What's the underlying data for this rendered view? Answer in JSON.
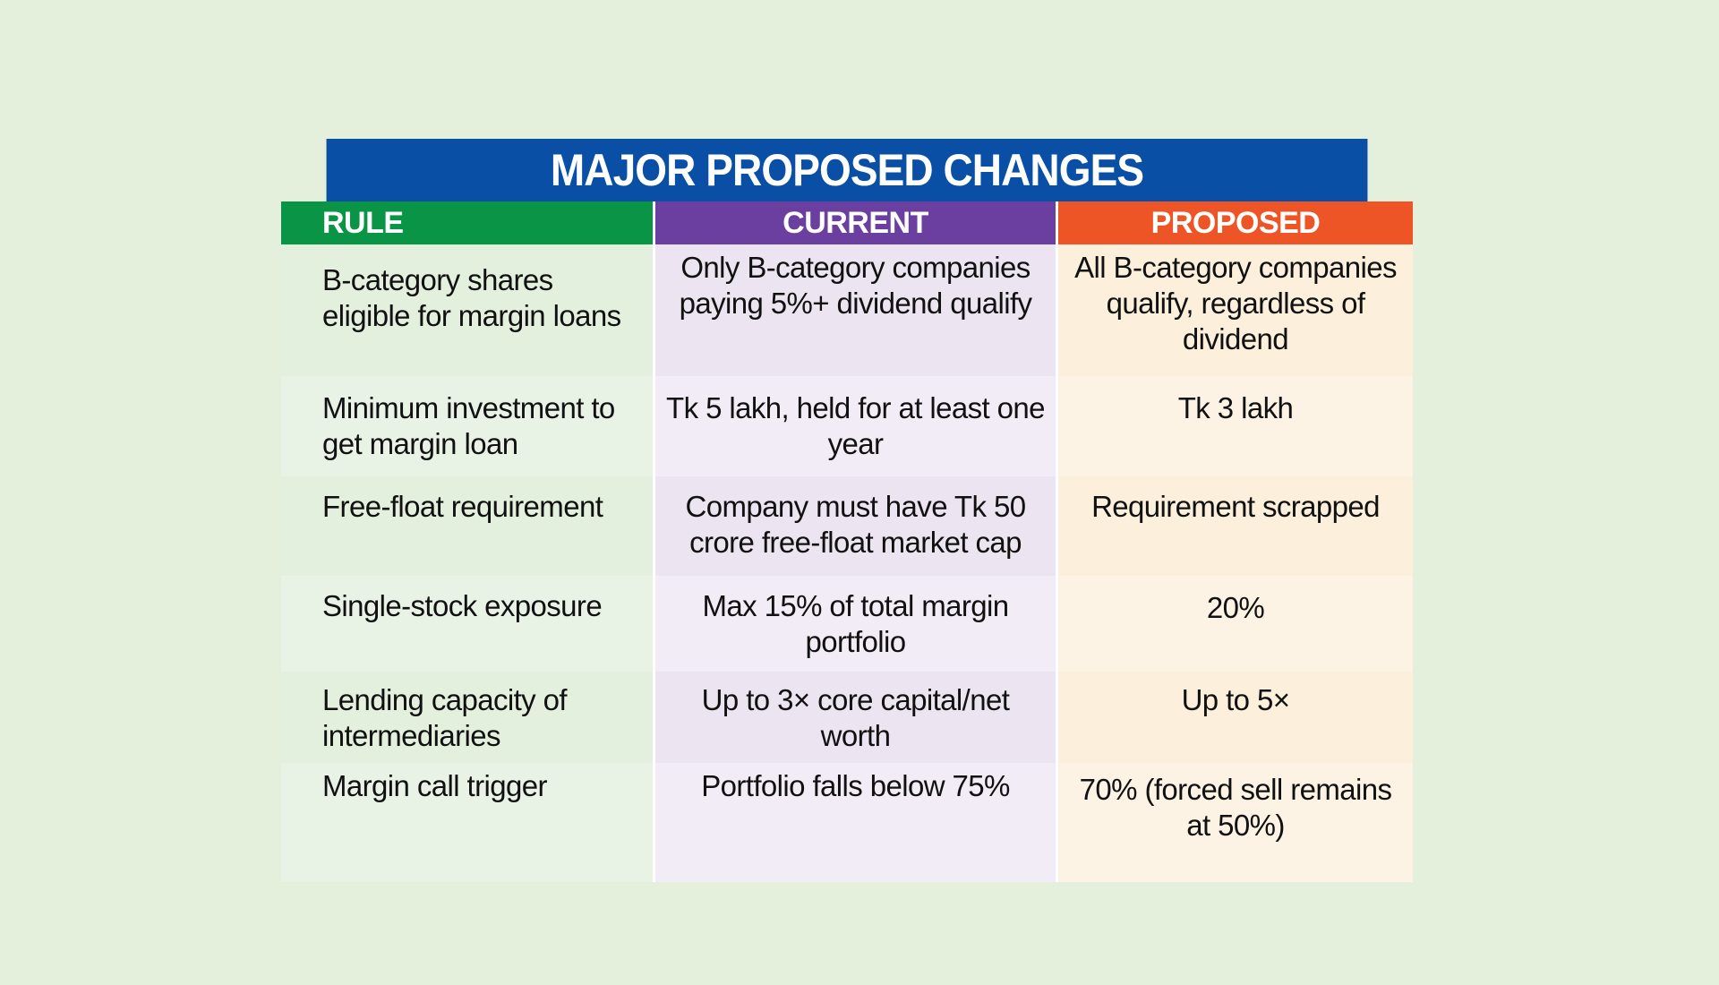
{
  "title": "MAJOR PROPOSED CHANGES",
  "headers": {
    "rule": "RULE",
    "current": "CURRENT",
    "proposed": "PROPOSED"
  },
  "colors": {
    "title_bg": "#0a4fa6",
    "rule_header": "#0a9446",
    "current_header": "#6a3fa0",
    "proposed_header": "#ee5526",
    "page_bg": "#e4f0dc"
  },
  "rows": [
    {
      "rule": "B-category shares eligible for margin loans",
      "current": "Only B-category companies paying 5%+ dividend qualify",
      "proposed": "All B-category companies qualify, regardless of dividend"
    },
    {
      "rule": "Minimum investment to get margin loan",
      "current": "Tk 5 lakh, held for at least one year",
      "proposed": "Tk 3 lakh"
    },
    {
      "rule": "Free-float requirement",
      "current": "Company must have Tk 50 crore free-float market cap",
      "proposed": "Requirement scrapped"
    },
    {
      "rule": "Single-stock exposure",
      "current": "Max 15% of total margin portfolio",
      "proposed": "20%"
    },
    {
      "rule": "Lending capacity of intermediaries",
      "current": "Up to 3× core capital/net worth",
      "proposed": "Up to 5×"
    },
    {
      "rule": "Margin call trigger",
      "current": "Portfolio falls below 75%",
      "proposed": "70% (forced sell remains at 50%)"
    }
  ]
}
